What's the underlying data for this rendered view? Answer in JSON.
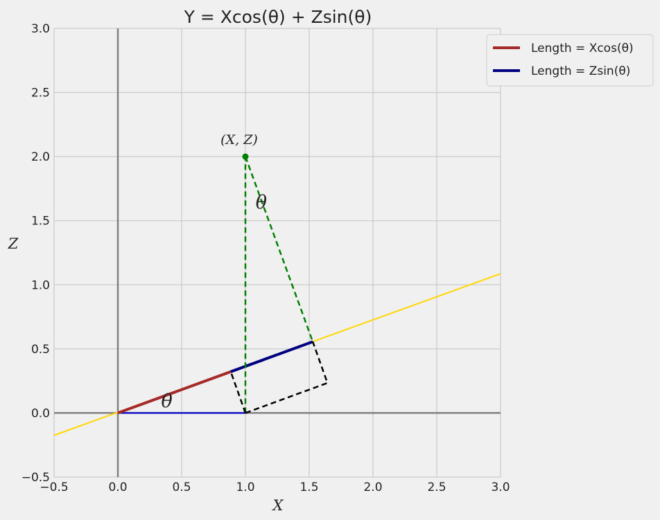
{
  "chart_data": {
    "type": "line",
    "title": "Y =  Xcos(θ) + Zsin(θ)",
    "xlabel": "X",
    "ylabel": "Z",
    "xlim": [
      -0.5,
      3.0
    ],
    "ylim": [
      -0.5,
      3.0
    ],
    "xticks": [
      "−0.5",
      "0.0",
      "0.5",
      "1.0",
      "1.5",
      "2.0",
      "2.5",
      "3.0"
    ],
    "yticks": [
      "−0.5",
      "0.0",
      "0.5",
      "1.0",
      "1.5",
      "2.0",
      "2.5",
      "3.0"
    ],
    "xtick_values": [
      -0.5,
      0,
      0.5,
      1,
      1.5,
      2,
      2.5,
      3
    ],
    "ytick_values": [
      -0.5,
      0,
      0.5,
      1,
      1.5,
      2,
      2.5,
      3
    ],
    "grid": true,
    "legend_position": "top-right",
    "point": {
      "label": "(X, Z)",
      "x": 1.0,
      "y": 2.0,
      "color": "#008000"
    },
    "angle_labels": [
      {
        "text": "θ",
        "x": 0.34,
        "y": 0.1
      },
      {
        "text": "θ",
        "x": 1.08,
        "y": 1.65
      }
    ],
    "series": [
      {
        "role": "projection-line",
        "color": "#ffd700",
        "x": [
          -0.5,
          3.0
        ],
        "y": [
          -0.1746,
          1.0865
        ]
      },
      {
        "role": "x-segment",
        "color": "#0000cd",
        "x": [
          0,
          1.0
        ],
        "y": [
          0,
          0
        ]
      },
      {
        "name": "Length = Xcos(θ)",
        "color": "#a52a2a",
        "x": [
          0,
          0.885
        ],
        "y": [
          0,
          0.322
        ]
      },
      {
        "name": "Length = Zsin(θ)",
        "color": "#000080",
        "x": [
          0.885,
          1.528
        ],
        "y": [
          0.322,
          0.556
        ]
      },
      {
        "role": "vertical-dashed",
        "color": "#008000",
        "x": [
          1.0,
          1.0
        ],
        "y": [
          0,
          2.0
        ]
      },
      {
        "role": "perpendicular-dashed",
        "color": "#008000",
        "x": [
          1.0,
          1.528
        ],
        "y": [
          2.0,
          0.556
        ]
      },
      {
        "role": "dashed-box",
        "color": "#000000",
        "x": [
          1.0,
          1.643,
          1.528
        ],
        "y": [
          0,
          0.234,
          0.556
        ]
      },
      {
        "role": "dashed-box-side",
        "color": "#000000",
        "x": [
          1.0,
          0.885
        ],
        "y": [
          0,
          0.322
        ]
      }
    ],
    "colors": {
      "axis": "#808080",
      "grid": "#cbcbcb",
      "background": "#f0f0f0"
    }
  }
}
